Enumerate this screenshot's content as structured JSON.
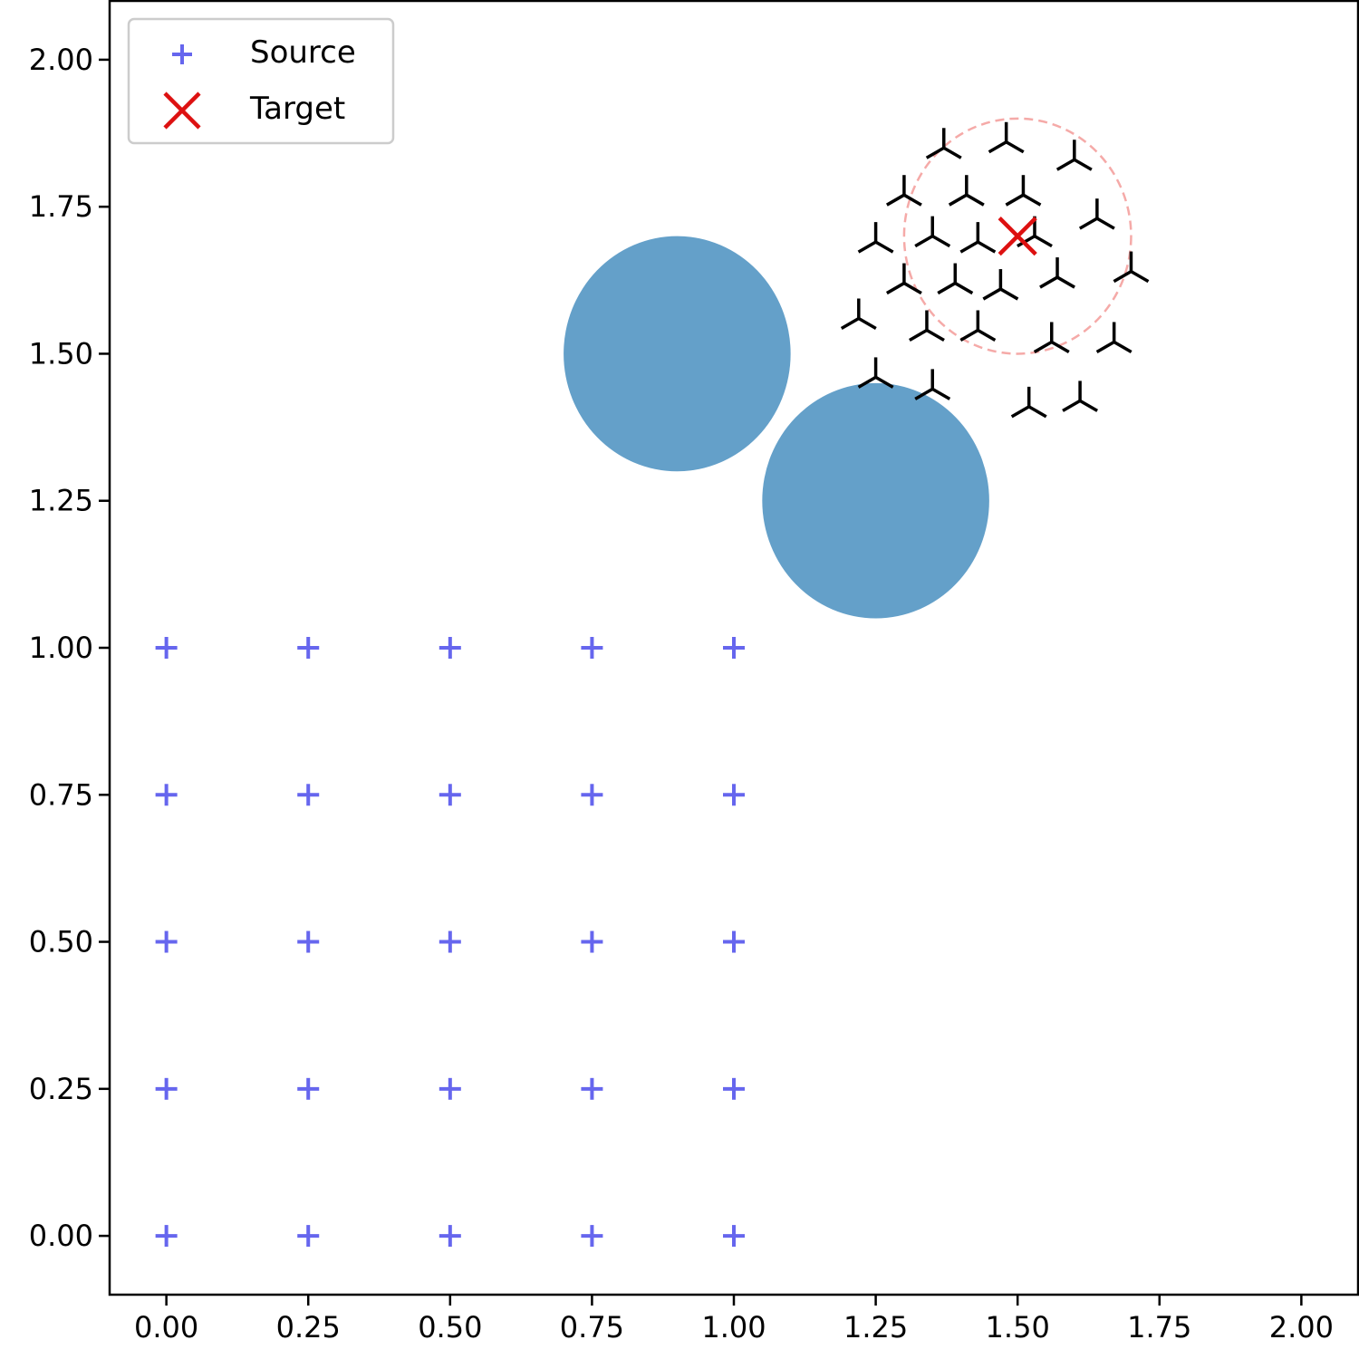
{
  "chart_data": {
    "type": "scatter",
    "title": "",
    "xlabel": "",
    "ylabel": "",
    "xlim": [
      -0.1,
      2.1
    ],
    "ylim": [
      -0.1,
      2.1
    ],
    "x_ticks": [
      "0.00",
      "0.25",
      "0.50",
      "0.75",
      "1.00",
      "1.25",
      "1.50",
      "1.75",
      "2.00"
    ],
    "y_ticks": [
      "0.00",
      "0.25",
      "0.50",
      "0.75",
      "1.00",
      "1.25",
      "1.50",
      "1.75",
      "2.00"
    ],
    "grid": false,
    "legend": {
      "placement": "top-left",
      "entries": [
        "Source",
        "Target"
      ]
    },
    "series": [
      {
        "name": "Source",
        "marker": "plus",
        "color": "#6666ee",
        "points": [
          [
            0.0,
            0.0
          ],
          [
            0.25,
            0.0
          ],
          [
            0.5,
            0.0
          ],
          [
            0.75,
            0.0
          ],
          [
            1.0,
            0.0
          ],
          [
            0.0,
            0.25
          ],
          [
            0.25,
            0.25
          ],
          [
            0.5,
            0.25
          ],
          [
            0.75,
            0.25
          ],
          [
            1.0,
            0.25
          ],
          [
            0.0,
            0.5
          ],
          [
            0.25,
            0.5
          ],
          [
            0.5,
            0.5
          ],
          [
            0.75,
            0.5
          ],
          [
            1.0,
            0.5
          ],
          [
            0.0,
            0.75
          ],
          [
            0.25,
            0.75
          ],
          [
            0.5,
            0.75
          ],
          [
            0.75,
            0.75
          ],
          [
            1.0,
            0.75
          ],
          [
            0.0,
            1.0
          ],
          [
            0.25,
            1.0
          ],
          [
            0.5,
            1.0
          ],
          [
            0.75,
            1.0
          ],
          [
            1.0,
            1.0
          ]
        ]
      },
      {
        "name": "Target",
        "marker": "x",
        "color": "#dd1111",
        "points": [
          [
            1.5,
            1.7
          ]
        ]
      }
    ],
    "samples": {
      "marker": "tri-down",
      "color": "#000000",
      "points": [
        [
          1.37,
          1.85
        ],
        [
          1.48,
          1.86
        ],
        [
          1.6,
          1.83
        ],
        [
          1.3,
          1.77
        ],
        [
          1.41,
          1.77
        ],
        [
          1.51,
          1.77
        ],
        [
          1.64,
          1.73
        ],
        [
          1.25,
          1.69
        ],
        [
          1.35,
          1.7
        ],
        [
          1.43,
          1.69
        ],
        [
          1.53,
          1.7
        ],
        [
          1.3,
          1.62
        ],
        [
          1.39,
          1.62
        ],
        [
          1.47,
          1.61
        ],
        [
          1.57,
          1.63
        ],
        [
          1.7,
          1.64
        ],
        [
          1.22,
          1.56
        ],
        [
          1.34,
          1.54
        ],
        [
          1.43,
          1.54
        ],
        [
          1.56,
          1.52
        ],
        [
          1.67,
          1.52
        ],
        [
          1.25,
          1.46
        ],
        [
          1.35,
          1.44
        ],
        [
          1.52,
          1.41
        ],
        [
          1.61,
          1.42
        ]
      ]
    },
    "obstacles": [
      {
        "cx": 0.9,
        "cy": 1.5,
        "r": 0.2,
        "color": "#64a0c9"
      },
      {
        "cx": 1.25,
        "cy": 1.25,
        "r": 0.2,
        "color": "#64a0c9"
      }
    ],
    "target_region": {
      "cx": 1.5,
      "cy": 1.7,
      "r": 0.2,
      "color": "#f5aaa8",
      "style": "dashed"
    }
  }
}
